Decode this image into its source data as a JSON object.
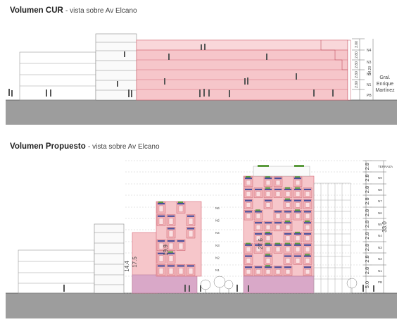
{
  "section1": {
    "title": "Volumen CUR",
    "subtitle": "- vista sobre Av Elcano",
    "floor_labels": [
      "N4",
      "N3",
      "N2",
      "N1",
      "PB"
    ],
    "heights": [
      "3.00",
      "2.80",
      "2.80",
      "2.80",
      "2.80"
    ],
    "total_height": "14.20",
    "street_label_lines": [
      "Gral.",
      "Enrique",
      "Martínez"
    ]
  },
  "section2": {
    "title": "Volumen Propuesto",
    "subtitle": "- vista sobre Av Elcano",
    "floor_labels": [
      "TERRAZA",
      "N9",
      "N8",
      "N7",
      "N6",
      "N5",
      "N4",
      "N3",
      "N2",
      "N1",
      "PB"
    ],
    "heights": [
      "2.8",
      "2.8",
      "2.8",
      "2.8",
      "2.8",
      "2.8",
      "2.8",
      "2.8",
      "2.8",
      "2.8",
      "5.0"
    ],
    "total_height": "33.0",
    "left_block_floor_labels": [
      "N6",
      "N5",
      "N4",
      "N3",
      "N2",
      "N1"
    ],
    "left_block_height": "19.9",
    "left_neighbor_heights": [
      "14.4",
      "17.5"
    ],
    "center_height": "27.6"
  },
  "colors": {
    "accent_pink": "#f2b3b8",
    "accent_pink_dark": "#d86b78",
    "balcony_blue": "#4a4f9c",
    "plant_green": "#5a9a3c",
    "ground": "#9d9d9d"
  }
}
